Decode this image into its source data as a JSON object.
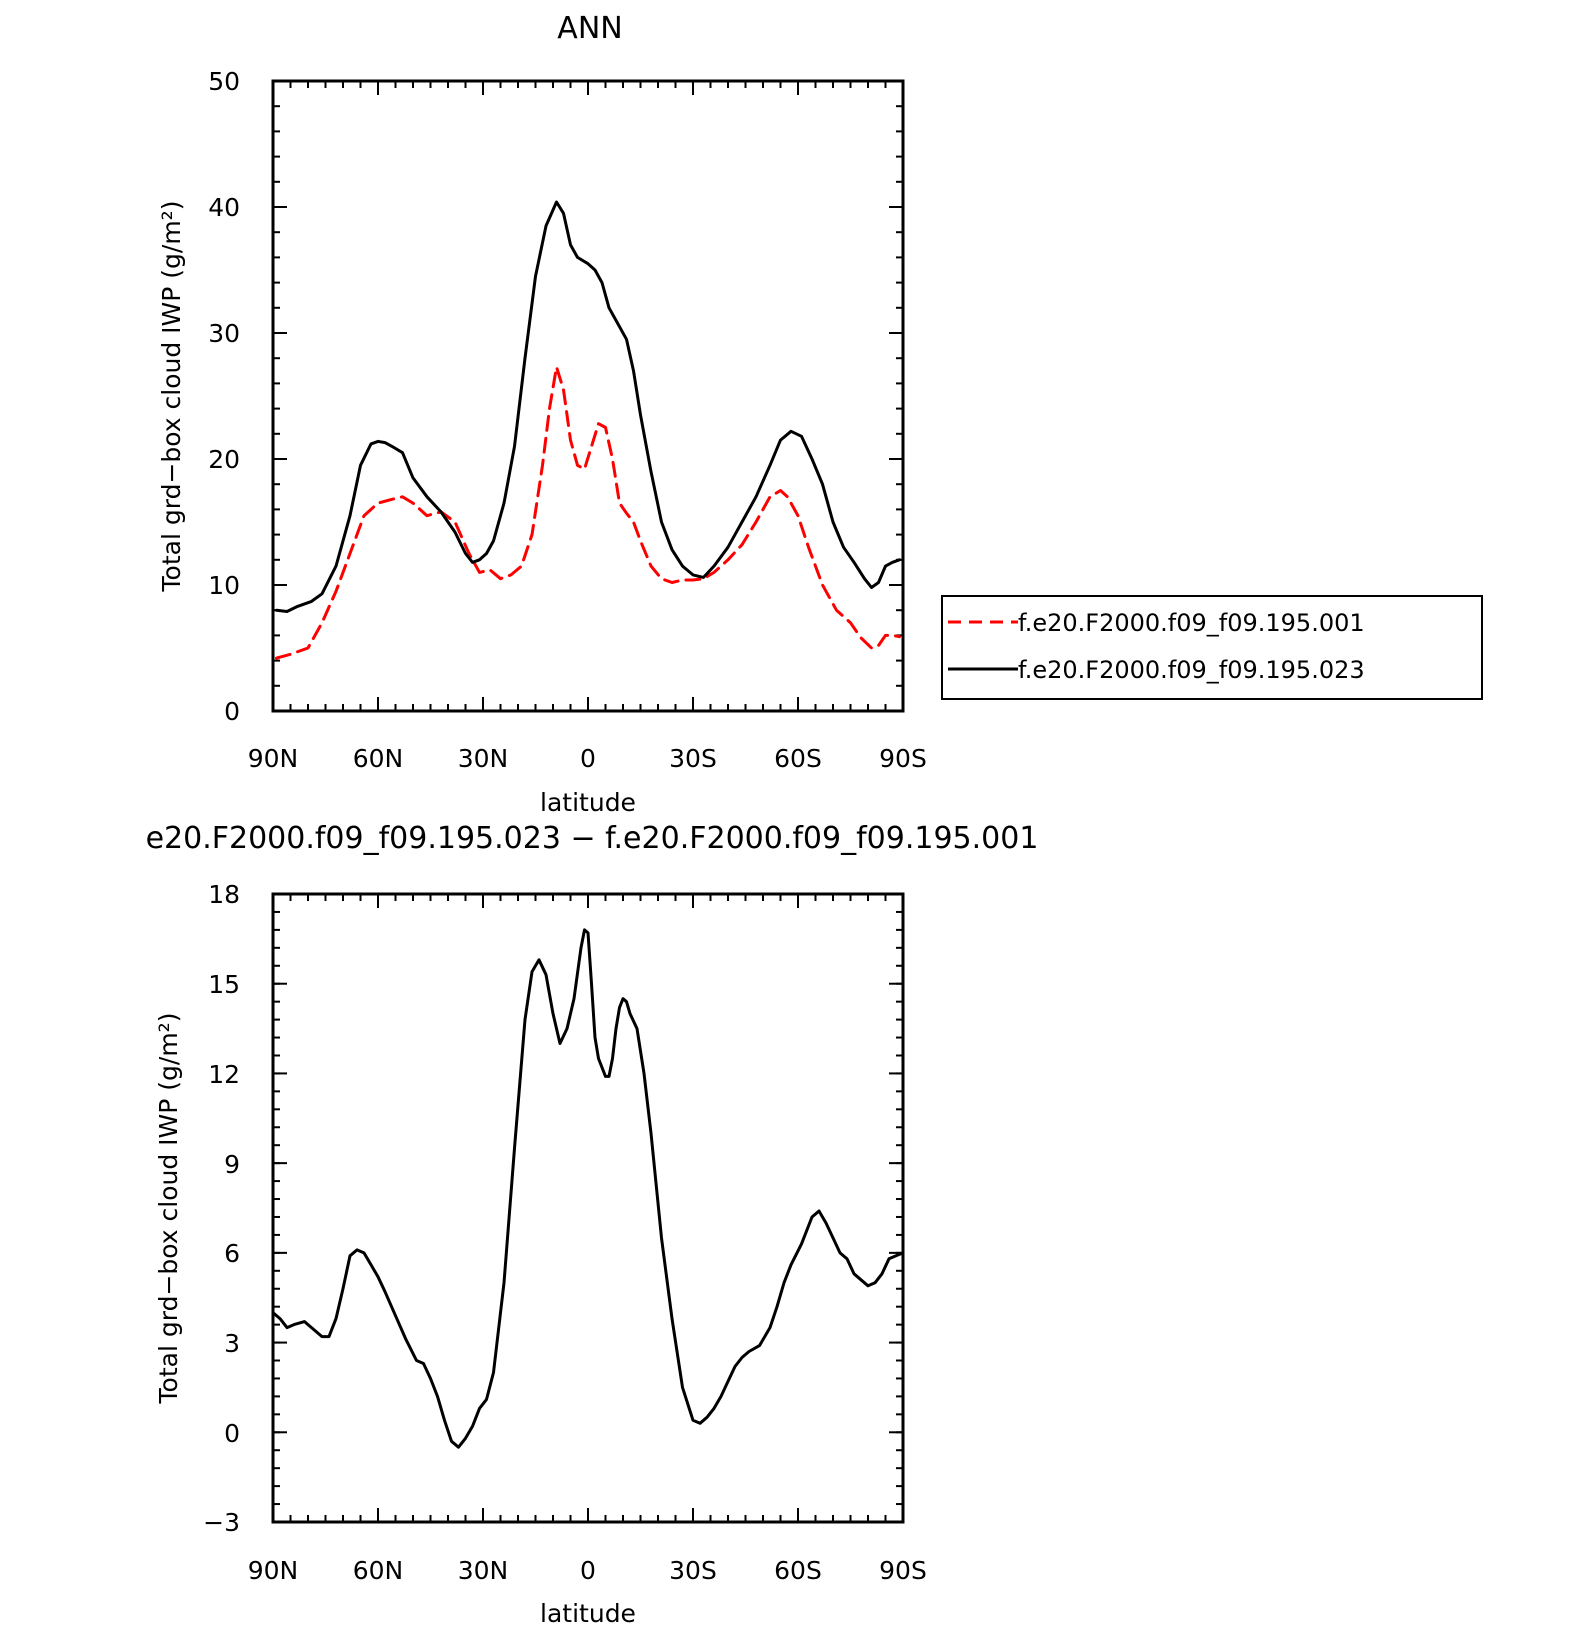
{
  "chart_data": [
    {
      "type": "line",
      "title": "ANN",
      "xlabel": "latitude",
      "ylabel": "Total grd−box cloud IWP (g/m²)",
      "x_tick_labels": [
        "90N",
        "60N",
        "30N",
        "0",
        "30S",
        "60S",
        "90S"
      ],
      "x_tick_values": [
        -90,
        -60,
        -30,
        0,
        30,
        60,
        90
      ],
      "xlim": [
        -90,
        90
      ],
      "ylim": [
        0,
        50
      ],
      "y_ticks": [
        0,
        10,
        20,
        30,
        40,
        50
      ],
      "y_tick_labels": [
        "0",
        "10",
        "20",
        "30",
        "40",
        "50"
      ],
      "legend_position": "right",
      "series": [
        {
          "name": "f.e20.F2000.f09_f09.195.001",
          "color": "#ff0000",
          "dash": "dashed",
          "x": [
            -89,
            -85,
            -80,
            -76,
            -72,
            -68,
            -64,
            -60,
            -56,
            -53,
            -50,
            -46,
            -42,
            -38,
            -34,
            -31,
            -28,
            -25,
            -22,
            -19,
            -16,
            -13,
            -11,
            -9,
            -7,
            -5,
            -3,
            -1,
            1,
            3,
            5,
            7,
            9,
            11,
            13,
            15,
            18,
            21,
            24,
            27,
            30,
            33,
            36,
            40,
            44,
            48,
            52,
            55,
            57,
            60,
            63,
            67,
            71,
            75,
            78,
            81,
            83,
            85,
            87,
            89
          ],
          "y": [
            4.2,
            4.5,
            5.0,
            7.0,
            9.5,
            12.5,
            15.5,
            16.5,
            16.8,
            17.0,
            16.5,
            15.5,
            15.8,
            15.0,
            12.5,
            11.0,
            11.2,
            10.5,
            10.8,
            11.5,
            14.0,
            19.5,
            24.0,
            27.3,
            25.5,
            21.5,
            19.5,
            19.2,
            21.0,
            22.8,
            22.5,
            20.0,
            16.5,
            15.7,
            15.0,
            13.5,
            11.5,
            10.5,
            10.2,
            10.4,
            10.4,
            10.5,
            11.0,
            12.0,
            13.2,
            15.0,
            17.0,
            17.5,
            17.0,
            15.5,
            13.0,
            10.0,
            8.0,
            7.0,
            5.8,
            5.0,
            5.2,
            6.0,
            6.0,
            5.9
          ]
        },
        {
          "name": "f.e20.F2000.f09_f09.195.023",
          "color": "#000000",
          "dash": "solid",
          "x": [
            -89,
            -86,
            -83,
            -79,
            -76,
            -72,
            -68,
            -65,
            -62,
            -60,
            -58,
            -56,
            -53,
            -50,
            -46,
            -42,
            -38,
            -35,
            -33,
            -31,
            -29,
            -27,
            -24,
            -21,
            -18,
            -15,
            -12,
            -9,
            -7,
            -5,
            -3,
            0,
            2,
            4,
            6,
            8,
            9,
            11,
            13,
            15,
            18,
            21,
            24,
            27,
            30,
            33,
            36,
            40,
            44,
            48,
            52,
            55,
            58,
            61,
            64,
            67,
            70,
            73,
            76,
            79,
            81,
            83,
            85,
            87,
            89
          ],
          "y": [
            8.0,
            7.9,
            8.3,
            8.7,
            9.3,
            11.5,
            15.5,
            19.5,
            21.2,
            21.4,
            21.3,
            21.0,
            20.5,
            18.5,
            17.0,
            15.8,
            14.2,
            12.5,
            11.8,
            12.0,
            12.5,
            13.5,
            16.5,
            21.0,
            28.0,
            34.5,
            38.5,
            40.4,
            39.5,
            37.0,
            36.0,
            35.5,
            35.0,
            34.0,
            32.0,
            31.0,
            30.5,
            29.5,
            27.0,
            23.5,
            19.0,
            15.0,
            12.8,
            11.5,
            10.8,
            10.6,
            11.5,
            13.0,
            15.0,
            17.0,
            19.5,
            21.5,
            22.2,
            21.8,
            20.0,
            18.0,
            15.0,
            13.0,
            11.8,
            10.5,
            9.8,
            10.2,
            11.5,
            11.8,
            12.0
          ]
        }
      ]
    },
    {
      "type": "line",
      "title": "e20.F2000.f09_f09.195.023 − f.e20.F2000.f09_f09.195.001",
      "xlabel": "latitude",
      "ylabel": "Total grd−box cloud IWP (g/m²)",
      "x_tick_labels": [
        "90N",
        "60N",
        "30N",
        "0",
        "30S",
        "60S",
        "90S"
      ],
      "x_tick_values": [
        -90,
        -60,
        -30,
        0,
        30,
        60,
        90
      ],
      "xlim": [
        -90,
        90
      ],
      "ylim": [
        -3,
        18
      ],
      "y_ticks": [
        -3,
        0,
        3,
        6,
        9,
        12,
        15,
        18
      ],
      "y_tick_labels": [
        "−3",
        "0",
        "3",
        "6",
        "9",
        "12",
        "15",
        "18"
      ],
      "series": [
        {
          "color": "#000000",
          "dash": "solid",
          "x": [
            -90,
            -88,
            -86,
            -84,
            -81,
            -79,
            -76,
            -74,
            -72,
            -70,
            -68,
            -66,
            -64,
            -62,
            -60,
            -58,
            -55,
            -52,
            -49,
            -47,
            -45,
            -43,
            -41,
            -39,
            -37,
            -35,
            -33,
            -31,
            -29,
            -27,
            -24,
            -21,
            -18,
            -16,
            -14,
            -12,
            -10,
            -8,
            -6,
            -4,
            -2,
            -1,
            0,
            1,
            2,
            3,
            5,
            6,
            7,
            8,
            9,
            10,
            11,
            12,
            14,
            16,
            18,
            21,
            24,
            27,
            30,
            32,
            34,
            36,
            38,
            40,
            42,
            44,
            46,
            49,
            52,
            54,
            56,
            58,
            61,
            64,
            66,
            68,
            70,
            72,
            74,
            76,
            78,
            80,
            82,
            84,
            86,
            88,
            90
          ],
          "y": [
            4.0,
            3.8,
            3.5,
            3.6,
            3.7,
            3.5,
            3.2,
            3.2,
            3.8,
            4.8,
            5.9,
            6.1,
            6.0,
            5.6,
            5.2,
            4.7,
            3.9,
            3.1,
            2.4,
            2.3,
            1.8,
            1.2,
            0.4,
            -0.3,
            -0.5,
            -0.2,
            0.2,
            0.8,
            1.1,
            2.0,
            5.0,
            9.5,
            13.8,
            15.4,
            15.8,
            15.3,
            14.0,
            13.0,
            13.5,
            14.5,
            16.2,
            16.8,
            16.7,
            15.0,
            13.2,
            12.5,
            11.9,
            11.9,
            12.5,
            13.5,
            14.2,
            14.5,
            14.4,
            14.0,
            13.5,
            12.0,
            10.0,
            6.5,
            3.8,
            1.5,
            0.4,
            0.3,
            0.5,
            0.8,
            1.2,
            1.7,
            2.2,
            2.5,
            2.7,
            2.9,
            3.5,
            4.2,
            5.0,
            5.6,
            6.3,
            7.2,
            7.4,
            7.0,
            6.5,
            6.0,
            5.8,
            5.3,
            5.1,
            4.9,
            5.0,
            5.3,
            5.8,
            5.9,
            6.0
          ]
        }
      ]
    }
  ]
}
